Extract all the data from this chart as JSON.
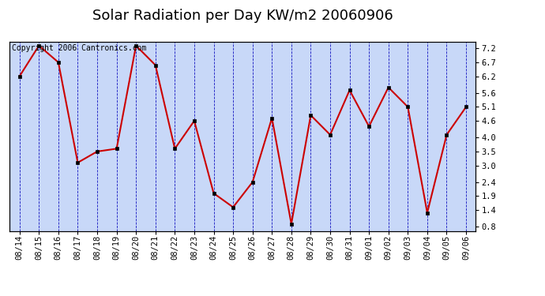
{
  "title": "Solar Radiation per Day KW/m2 20060906",
  "copyright_text": "Copyright 2006 Cantronics.com",
  "dates": [
    "08/14",
    "08/15",
    "08/16",
    "08/17",
    "08/18",
    "08/19",
    "08/20",
    "08/21",
    "08/22",
    "08/23",
    "08/24",
    "08/25",
    "08/26",
    "08/27",
    "08/28",
    "08/29",
    "08/30",
    "08/31",
    "09/01",
    "09/02",
    "09/03",
    "09/04",
    "09/05",
    "09/06"
  ],
  "values": [
    6.2,
    7.3,
    6.7,
    3.1,
    3.5,
    3.6,
    7.3,
    6.6,
    3.6,
    4.6,
    2.0,
    1.5,
    2.4,
    4.7,
    0.9,
    4.8,
    4.1,
    5.7,
    4.4,
    5.8,
    5.1,
    1.3,
    4.1,
    5.1
  ],
  "line_color": "#cc0000",
  "marker_color": "#000000",
  "bg_color": "#c8d8f8",
  "grid_color": "#0000bb",
  "yticks": [
    0.8,
    1.4,
    1.9,
    2.4,
    3.0,
    3.5,
    4.0,
    4.6,
    5.1,
    5.6,
    6.2,
    6.7,
    7.2
  ],
  "ylim": [
    0.65,
    7.45
  ],
  "title_fontsize": 13,
  "copyright_fontsize": 7,
  "tick_fontsize": 7.5
}
